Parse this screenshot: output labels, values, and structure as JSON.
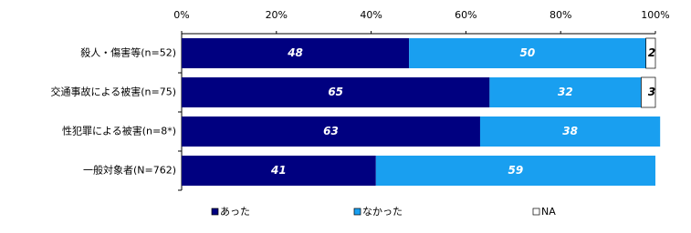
{
  "chart_data": {
    "type": "stacked-bar-horizontal",
    "categories": [
      "殺人・傷害等(n=52)",
      "交通事故による被害(n=75)",
      "性犯罪による被害(n=8*)",
      "一般対象者(N=762)"
    ],
    "series": [
      {
        "name": "あった",
        "color": "#000080",
        "values": [
          48,
          65,
          63,
          41
        ]
      },
      {
        "name": "なかった",
        "color": "#199ff0",
        "values": [
          50,
          32,
          38,
          59
        ]
      },
      {
        "name": "NA",
        "color": "#ffffff",
        "values": [
          2,
          3,
          null,
          null
        ]
      }
    ],
    "xlim": [
      0,
      100
    ],
    "xticks": [
      {
        "value": 0,
        "label": "0%"
      },
      {
        "value": 20,
        "label": "20%"
      },
      {
        "value": 40,
        "label": "40%"
      },
      {
        "value": 60,
        "label": "60%"
      },
      {
        "value": 80,
        "label": "80%"
      },
      {
        "value": 100,
        "label": "100%"
      }
    ],
    "legend": "bottom"
  }
}
